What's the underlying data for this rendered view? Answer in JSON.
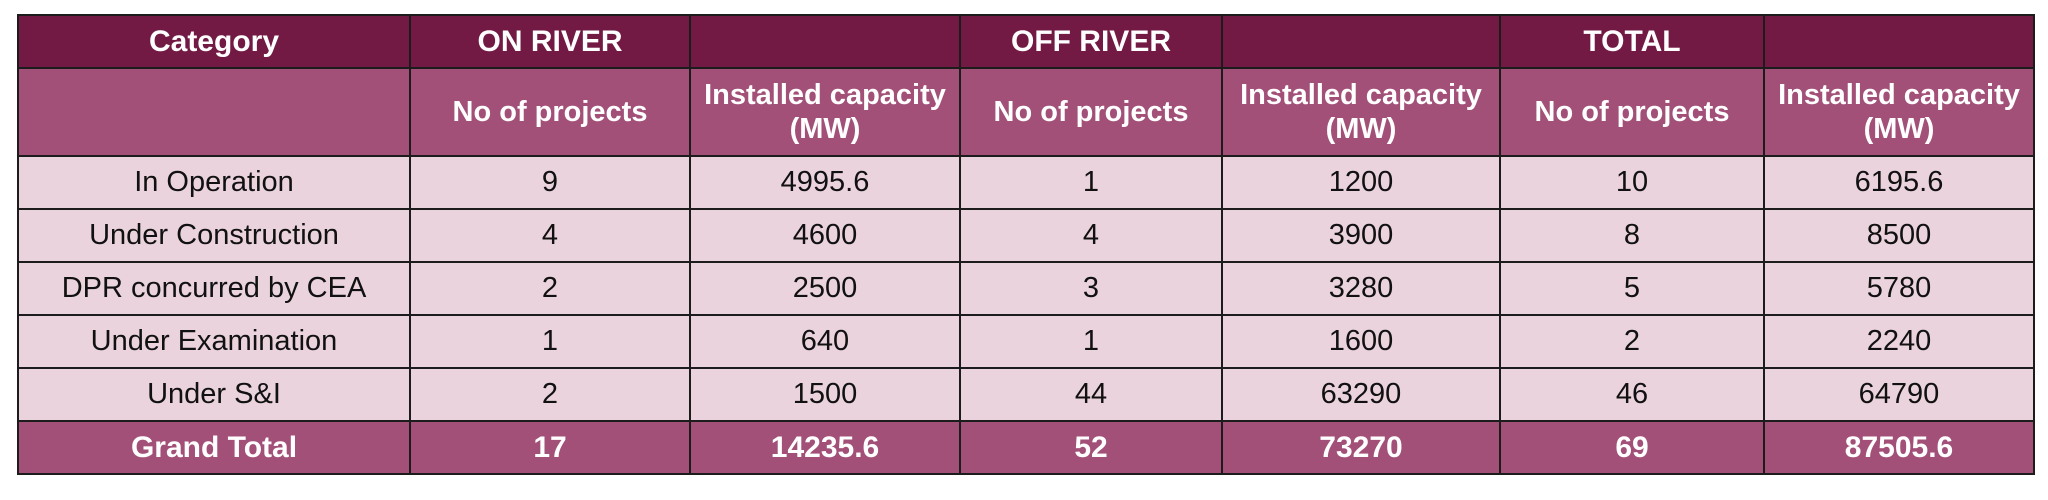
{
  "header": {
    "category": "Category",
    "on_river": "ON RIVER",
    "off_river": "OFF RIVER",
    "total": "TOTAL"
  },
  "subheader": {
    "on_projects": "No of projects",
    "on_capacity": "Installed capacity (MW)",
    "off_projects": "No of projects",
    "off_capacity": "Installed capacity (MW)",
    "total_projects": "No of projects",
    "total_capacity": "Installed capacity (MW)"
  },
  "rows": [
    {
      "category": "In Operation",
      "on_projects": "9",
      "on_capacity": "4995.6",
      "off_projects": "1",
      "off_capacity": "1200",
      "total_projects": "10",
      "total_capacity": "6195.6"
    },
    {
      "category": "Under Construction",
      "on_projects": "4",
      "on_capacity": "4600",
      "off_projects": "4",
      "off_capacity": "3900",
      "total_projects": "8",
      "total_capacity": "8500"
    },
    {
      "category": "DPR concurred by CEA",
      "on_projects": "2",
      "on_capacity": "2500",
      "off_projects": "3",
      "off_capacity": "3280",
      "total_projects": "5",
      "total_capacity": "5780"
    },
    {
      "category": "Under Examination",
      "on_projects": "1",
      "on_capacity": "640",
      "off_projects": "1",
      "off_capacity": "1600",
      "total_projects": "2",
      "total_capacity": "2240"
    },
    {
      "category": "Under S&I",
      "on_projects": "2",
      "on_capacity": "1500",
      "off_projects": "44",
      "off_capacity": "63290",
      "total_projects": "46",
      "total_capacity": "64790"
    }
  ],
  "grand_total": {
    "category": "Grand Total",
    "on_projects": "17",
    "on_capacity": "14235.6",
    "off_projects": "52",
    "off_capacity": "73270",
    "total_projects": "69",
    "total_capacity": "87505.6"
  },
  "colors": {
    "header_bg": "#721a44",
    "subheader_bg": "#a35079",
    "row_bg": "#ebd3dd",
    "border": "#1c1c1c"
  }
}
